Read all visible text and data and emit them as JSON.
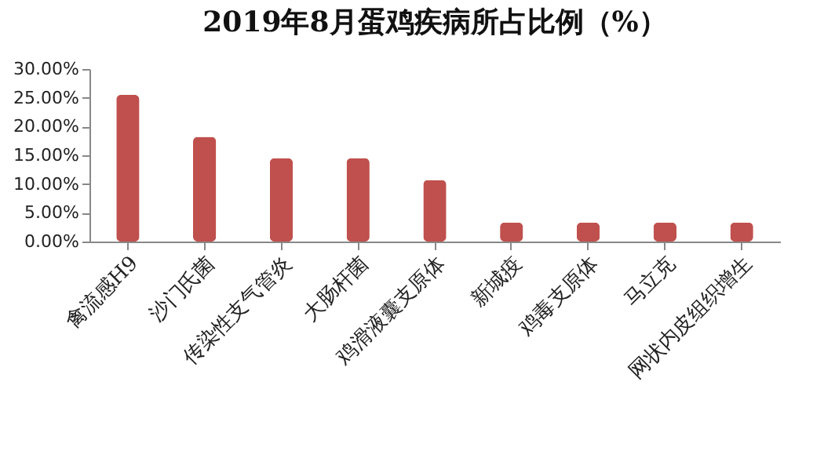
{
  "chart_data": {
    "type": "bar",
    "title": "2019年8月蛋鸡疾病所占比例（%）",
    "categories": [
      "禽流感H9",
      "沙门氏菌",
      "传染性支气管炎",
      "大肠杆菌",
      "鸡滑液囊支原体",
      "新城疫",
      "鸡毒支原体",
      "马立克",
      "网状内皮组织增生"
    ],
    "values": [
      25.5,
      18.2,
      14.5,
      14.5,
      10.7,
      3.3,
      3.3,
      3.3,
      3.3
    ],
    "color": "#c0504d",
    "ylim": [
      0,
      30
    ],
    "yticks": [
      {
        "value": 0,
        "label": "0.00%"
      },
      {
        "value": 5,
        "label": "5.00%"
      },
      {
        "value": 10,
        "label": "10.00%"
      },
      {
        "value": 15,
        "label": "15.00%"
      },
      {
        "value": 20,
        "label": "20.00%"
      },
      {
        "value": 25,
        "label": "25.00%"
      },
      {
        "value": 30,
        "label": "30.00%"
      }
    ],
    "grid": false
  }
}
